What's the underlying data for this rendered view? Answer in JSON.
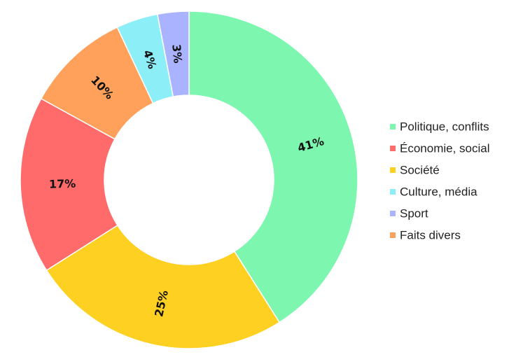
{
  "chart_data": {
    "type": "pie",
    "variant": "donut",
    "title": "",
    "categories": [
      "Politique, conflits",
      "Économie, social",
      "Société",
      "Culture, média",
      "Sport",
      "Faits divers"
    ],
    "values": [
      41,
      17,
      25,
      4,
      3,
      10
    ],
    "value_labels": [
      "41%",
      "17%",
      "25%",
      "4%",
      "3%",
      "10%"
    ],
    "colors": [
      "#7df7b0",
      "#ff6b6b",
      "#fed022",
      "#8ceef7",
      "#aab3ff",
      "#ffa15a"
    ],
    "drawing_order": [
      0,
      2,
      1,
      5,
      3,
      4
    ],
    "legend_position": "right"
  }
}
